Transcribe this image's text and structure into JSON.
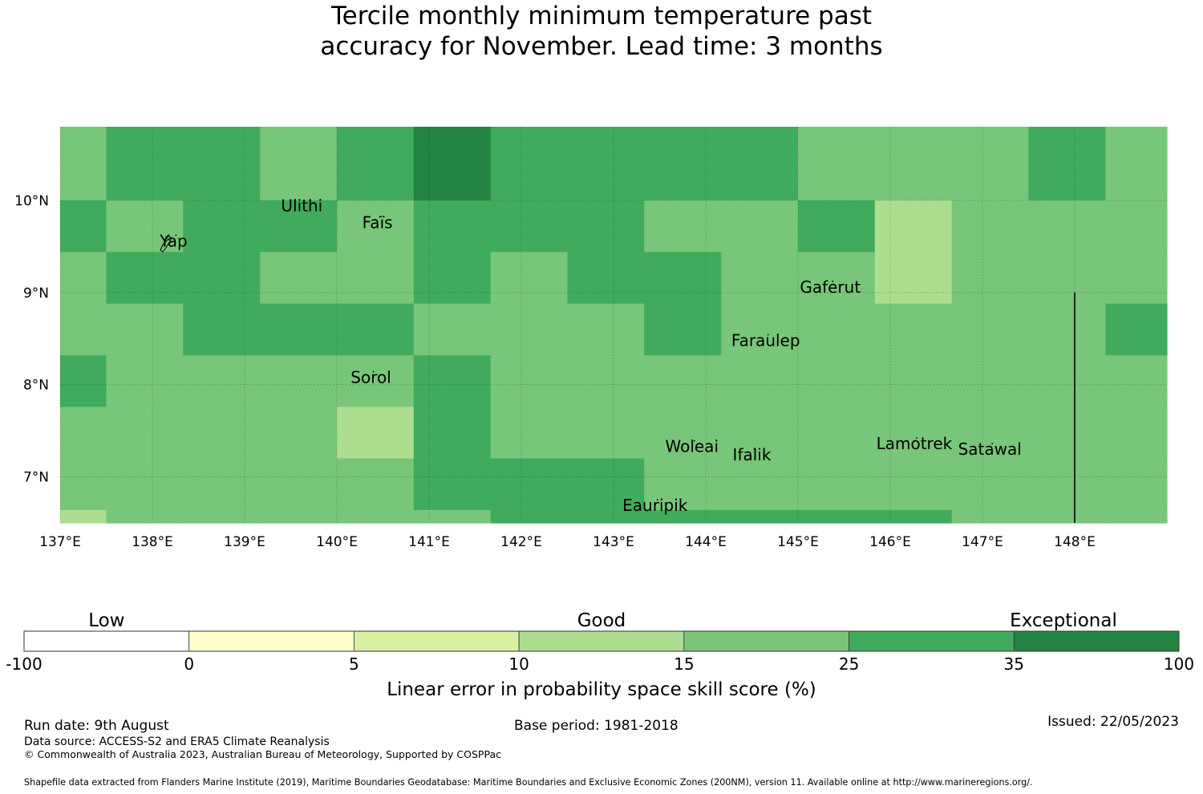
{
  "title": {
    "line1": "Tercile monthly minimum temperature past",
    "line2": "accuracy for November. Lead time: 3 months"
  },
  "colors": {
    "-100-0": "#ffffff",
    "0-5": "#ffffcc",
    "5-10": "#d9f0a3",
    "10-15": "#addd8e",
    "15-25": "#78c679",
    "25-35": "#41ab5d",
    "35-100": "#238443"
  },
  "map": {
    "lon_range": [
      137.0,
      149.0
    ],
    "lat_range": [
      6.5,
      10.8
    ],
    "lon_ticks": [
      "137°E",
      "138°E",
      "139°E",
      "140°E",
      "141°E",
      "142°E",
      "143°E",
      "144°E",
      "145°E",
      "146°E",
      "147°E",
      "148°E"
    ],
    "lon_tick_values": [
      137,
      138,
      139,
      140,
      141,
      142,
      143,
      144,
      145,
      146,
      147,
      148
    ],
    "lat_ticks": [
      "10°N",
      "9°N",
      "8°N",
      "7°N"
    ],
    "lat_tick_values": [
      10,
      9,
      8,
      7
    ],
    "cell_lon_edges": [
      137.0,
      137.5,
      138.333,
      139.167,
      140.0,
      140.833,
      141.667,
      142.5,
      143.333,
      144.167,
      145.0,
      145.833,
      146.667,
      147.5,
      148.333,
      149.0
    ],
    "cell_lat_edges": [
      10.8,
      10.0,
      9.44,
      8.88,
      8.32,
      7.76,
      7.2,
      6.64,
      6.5
    ],
    "cells": [
      [
        "15-25",
        "25-35",
        "25-35",
        "15-25",
        "25-35",
        "35-100",
        "25-35",
        "25-35",
        "25-35",
        "25-35",
        "15-25",
        "15-25",
        "15-25",
        "25-35",
        "15-25"
      ],
      [
        "25-35",
        "15-25",
        "25-35",
        "25-35",
        "15-25",
        "25-35",
        "25-35",
        "25-35",
        "15-25",
        "15-25",
        "25-35",
        "10-15",
        "15-25",
        "15-25",
        "15-25"
      ],
      [
        "15-25",
        "25-35",
        "25-35",
        "15-25",
        "15-25",
        "25-35",
        "15-25",
        "25-35",
        "25-35",
        "15-25",
        "15-25",
        "10-15",
        "15-25",
        "15-25",
        "15-25"
      ],
      [
        "15-25",
        "15-25",
        "25-35",
        "25-35",
        "25-35",
        "15-25",
        "15-25",
        "15-25",
        "25-35",
        "15-25",
        "15-25",
        "15-25",
        "15-25",
        "15-25",
        "25-35"
      ],
      [
        "25-35",
        "15-25",
        "15-25",
        "15-25",
        "15-25",
        "25-35",
        "15-25",
        "15-25",
        "15-25",
        "15-25",
        "15-25",
        "15-25",
        "15-25",
        "15-25",
        "15-25"
      ],
      [
        "15-25",
        "15-25",
        "15-25",
        "15-25",
        "10-15",
        "25-35",
        "15-25",
        "15-25",
        "15-25",
        "15-25",
        "15-25",
        "15-25",
        "15-25",
        "15-25",
        "15-25"
      ],
      [
        "15-25",
        "15-25",
        "15-25",
        "15-25",
        "15-25",
        "25-35",
        "25-35",
        "25-35",
        "15-25",
        "15-25",
        "15-25",
        "15-25",
        "15-25",
        "15-25",
        "15-25"
      ],
      [
        "10-15",
        "15-25",
        "15-25",
        "15-25",
        "15-25",
        "15-25",
        "25-35",
        "25-35",
        "25-35",
        "25-35",
        "25-35",
        "25-35",
        "15-25",
        "15-25",
        "15-25"
      ]
    ],
    "boundary_line": {
      "lon": 148.0,
      "lat_from": 6.5,
      "lat_to": 9.0
    },
    "places": [
      {
        "name": "Yap",
        "lon": 138.23,
        "lat": 9.5
      },
      {
        "name": "Ulithi",
        "lon": 139.62,
        "lat": 9.88
      },
      {
        "name": "Faïs",
        "lon": 140.44,
        "lat": 9.7
      },
      {
        "name": "Gaferut",
        "lon": 145.35,
        "lat": 9.0
      },
      {
        "name": "Faraulep",
        "lon": 144.65,
        "lat": 8.42
      },
      {
        "name": "Sorol",
        "lon": 140.37,
        "lat": 8.02
      },
      {
        "name": "Woleai",
        "lon": 143.85,
        "lat": 7.27
      },
      {
        "name": "Ifalik",
        "lon": 144.5,
        "lat": 7.18
      },
      {
        "name": "Lamotrek",
        "lon": 146.26,
        "lat": 7.3
      },
      {
        "name": "Satawal",
        "lon": 147.08,
        "lat": 7.24
      },
      {
        "name": "Eauripik",
        "lon": 143.45,
        "lat": 6.63
      }
    ]
  },
  "colorbar": {
    "boundaries": [
      "-100",
      "0",
      "5",
      "10",
      "15",
      "25",
      "35",
      "100"
    ],
    "bins": [
      "-100-0",
      "0-5",
      "5-10",
      "10-15",
      "15-25",
      "25-35",
      "35-100"
    ],
    "categories": [
      {
        "label": "Low",
        "center_bin": 0.5
      },
      {
        "label": "Good",
        "center_bin": 3.5
      },
      {
        "label": "Exceptional",
        "center_bin": 6.3
      }
    ],
    "label": "Linear error in probability space skill score (%)"
  },
  "footer": {
    "run_date": "Run date: 9th August",
    "base_period": "Base period: 1981-2018",
    "issued": "Issued: 22/05/2023",
    "data_source": "Data source: ACCESS-S2 and ERA5 Climate Reanalysis",
    "copyright": "© Commonwealth of Australia 2023, Australian Bureau of Meteorology, Supported by COSPPac",
    "shapefile": "Shapefile data extracted from Flanders Marine Institute (2019), Maritime Boundaries Geodatabase: Maritime Boundaries and Exclusive Economic Zones (200NM), version 11. Available online at http://www.marineregions.org/."
  }
}
